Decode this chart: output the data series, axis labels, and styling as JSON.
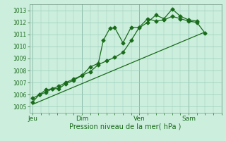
{
  "xlabel": "Pression niveau de la mer( hPa )",
  "bg_color": "#cceedd",
  "grid_color": "#99ccbb",
  "line_color": "#1a6b1a",
  "ylim": [
    1004.5,
    1013.5
  ],
  "yticks": [
    1005,
    1006,
    1007,
    1008,
    1009,
    1010,
    1011,
    1012,
    1013
  ],
  "day_labels": [
    "Jeu",
    "Dim",
    "Ven",
    "Sam"
  ],
  "day_positions": [
    0.0,
    3.0,
    6.5,
    9.5
  ],
  "xlim": [
    -0.2,
    11.5
  ],
  "series1_x": [
    0,
    10.5
  ],
  "series1_y": [
    1005.2,
    1011.2
  ],
  "series2_x": [
    0,
    0.4,
    0.8,
    1.2,
    1.6,
    2.0,
    2.5,
    3.0,
    3.5,
    4.0,
    4.3,
    4.7,
    5.0,
    5.5,
    6.0,
    6.5,
    7.0,
    7.5,
    8.0,
    8.5,
    9.0,
    9.5,
    10.0
  ],
  "series2_y": [
    1005.7,
    1006.0,
    1006.4,
    1006.5,
    1006.5,
    1006.9,
    1007.2,
    1007.6,
    1008.3,
    1008.6,
    1010.5,
    1011.5,
    1011.55,
    1010.3,
    1011.6,
    1011.55,
    1012.0,
    1012.6,
    1012.3,
    1013.1,
    1012.5,
    1012.2,
    1012.1
  ],
  "series3_x": [
    0,
    0.4,
    0.8,
    1.2,
    1.6,
    2.0,
    2.5,
    3.0,
    3.5,
    4.0,
    4.5,
    5.0,
    5.5,
    6.0,
    6.5,
    7.0,
    7.5,
    8.0,
    8.5,
    9.0,
    9.5,
    10.0,
    10.5
  ],
  "series3_y": [
    1005.4,
    1006.0,
    1006.2,
    1006.5,
    1006.7,
    1007.0,
    1007.3,
    1007.6,
    1007.9,
    1008.5,
    1008.8,
    1009.1,
    1009.5,
    1010.5,
    1011.6,
    1012.3,
    1012.1,
    1012.2,
    1012.5,
    1012.3,
    1012.1,
    1012.0,
    1011.1
  ]
}
